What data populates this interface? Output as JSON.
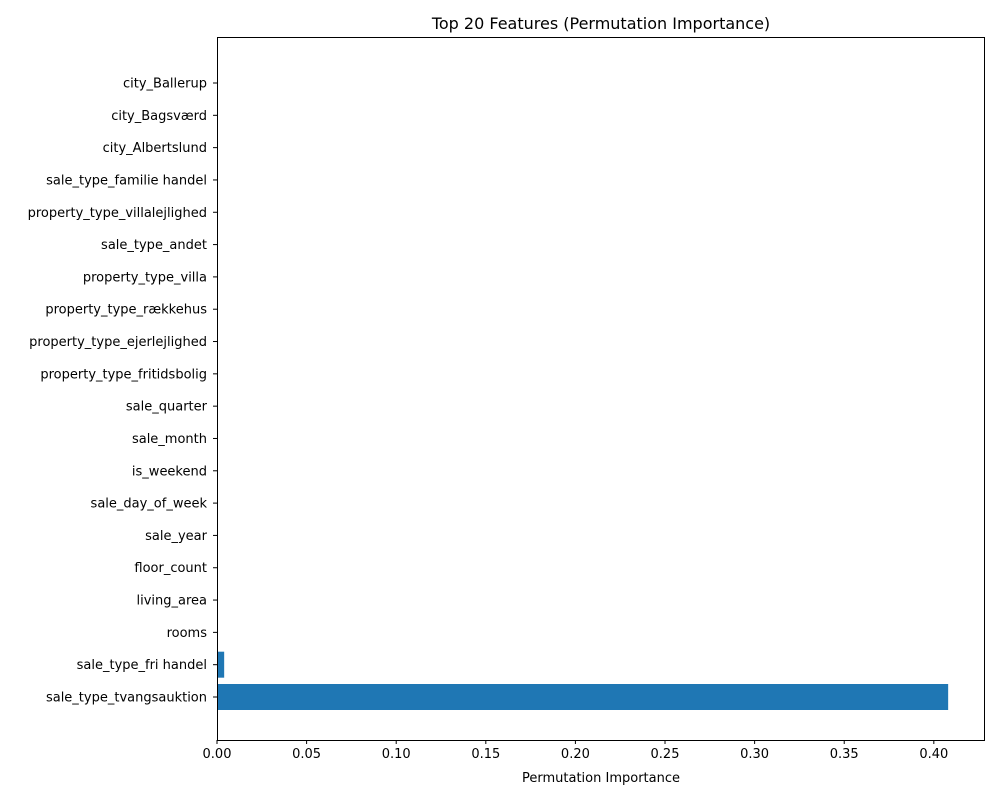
{
  "chart_data": {
    "type": "bar",
    "orientation": "horizontal",
    "title": "Top 20 Features (Permutation Importance)",
    "xlabel": "Permutation Importance",
    "ylabel": "",
    "xlim": [
      0.0,
      0.428
    ],
    "xticks": [
      "0.00",
      "0.05",
      "0.10",
      "0.15",
      "0.20",
      "0.25",
      "0.30",
      "0.35",
      "0.40"
    ],
    "bar_color": "#1f77b4",
    "grid": false,
    "categories": [
      "city_Ballerup",
      "city_Bagsværd",
      "city_Albertslund",
      "sale_type_familie handel",
      "property_type_villalejlighed",
      "sale_type_andet",
      "property_type_villa",
      "property_type_rækkehus",
      "property_type_ejerlejlighed",
      "property_type_fritidsbolig",
      "sale_quarter",
      "sale_month",
      "is_weekend",
      "sale_day_of_week",
      "sale_year",
      "floor_count",
      "living_area",
      "rooms",
      "sale_type_fri handel",
      "sale_type_tvangsauktion"
    ],
    "values": [
      0,
      0,
      0,
      0,
      0,
      0,
      0,
      0,
      0,
      0,
      0,
      0,
      0,
      0,
      0,
      0,
      0,
      0,
      0.004,
      0.408
    ]
  }
}
